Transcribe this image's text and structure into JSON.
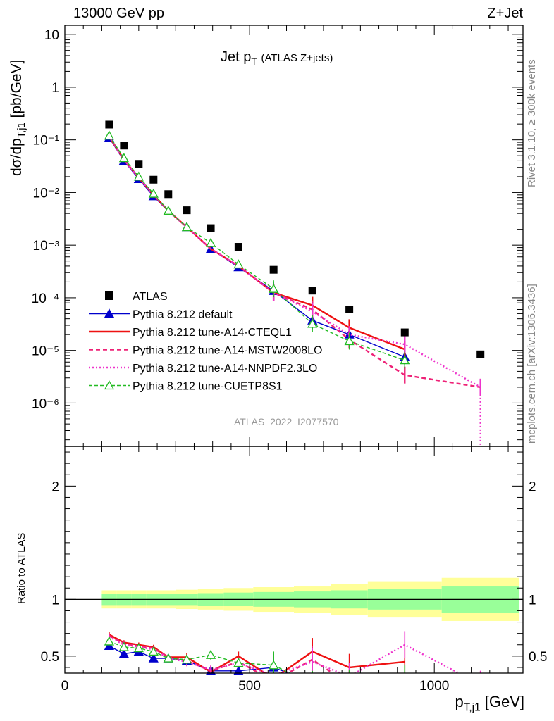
{
  "header": {
    "left": "13000 GeV pp",
    "right": "Z+Jet"
  },
  "side_labels": {
    "rivet": "Rivet 3.1.10, ≥ 300k events",
    "mcplots": "mcplots.cern.ch [arXiv:1306.3436]"
  },
  "plot_title": {
    "main": "Jet p",
    "main_sub": "T",
    "note": "(ATLAS Z+jets)"
  },
  "analysis_tag": "ATLAS_2022_I2077570",
  "axis_labels": {
    "main_y": "dσ/dp",
    "main_y_sub": "T,j1",
    "main_y_unit": " [pb/GeV]",
    "ratio_y": "Ratio to ATLAS",
    "x": "p",
    "x_sub": "T,j1",
    "x_unit": " [GeV]"
  },
  "colors": {
    "atlas": "#000000",
    "default": "#0000cc",
    "cteql1": "#ee1111",
    "mstw": "#ee2277",
    "nnpdf": "#ee33cc",
    "cuetp8s1": "#22bb22",
    "band_inner": "#99ff99",
    "band_outer": "#ffff99"
  },
  "chart_data": {
    "type": "scatter",
    "x_range": [
      0,
      1240
    ],
    "x_ticks": [
      "0",
      "500",
      "1000"
    ],
    "main_y_log": true,
    "main_y_range": [
      1.5e-07,
      15
    ],
    "main_y_ticks": [
      "10",
      "1",
      "10⁻¹",
      "10⁻²",
      "10⁻³",
      "10⁻⁴",
      "10⁻⁵",
      "10⁻⁶"
    ],
    "ratio_y_range": [
      0.35,
      2.35
    ],
    "ratio_y_ticks": [
      "0.5",
      "1",
      "2"
    ],
    "bins": [
      [
        100,
        140
      ],
      [
        140,
        180
      ],
      [
        180,
        220
      ],
      [
        220,
        260
      ],
      [
        260,
        300
      ],
      [
        300,
        360
      ],
      [
        360,
        430
      ],
      [
        430,
        510
      ],
      [
        510,
        620
      ],
      [
        620,
        720
      ],
      [
        720,
        820
      ],
      [
        820,
        1020
      ],
      [
        1020,
        1230
      ]
    ],
    "atlas": {
      "name": "ATLAS",
      "x": [
        120,
        160,
        200,
        240,
        280,
        330,
        395,
        470,
        565,
        670,
        770,
        920,
        1125
      ],
      "y": [
        0.195,
        0.078,
        0.035,
        0.0175,
        0.0093,
        0.0046,
        0.0021,
        0.00093,
        0.00034,
        0.000137,
        6e-05,
        2.2e-05,
        8.4e-06
      ],
      "band_inner": [
        0.05,
        0.05,
        0.05,
        0.05,
        0.05,
        0.05,
        0.055,
        0.06,
        0.065,
        0.07,
        0.08,
        0.09,
        0.12
      ],
      "band_outer": [
        0.08,
        0.08,
        0.08,
        0.08,
        0.08,
        0.085,
        0.09,
        0.1,
        0.11,
        0.12,
        0.135,
        0.16,
        0.19
      ]
    },
    "series": [
      {
        "key": "default",
        "name": "Pythia 8.212 default",
        "x": [
          120,
          160,
          200,
          240,
          280,
          330,
          395,
          470,
          565,
          670,
          770,
          920
        ],
        "y": [
          0.11,
          0.04,
          0.018,
          0.0085,
          0.0044,
          0.0022,
          0.00085,
          0.00038,
          0.000135,
          3.7e-05,
          2e-05,
          7.5e-06
        ],
        "ratio": [
          0.59,
          0.52,
          0.54,
          0.48,
          0.48,
          0.46,
          0.37,
          0.37,
          0.4,
          0.27,
          0.33,
          0.34
        ]
      },
      {
        "key": "cteql1",
        "name": "Pythia 8.212 tune-A14-CTEQL1",
        "x": [
          120,
          160,
          200,
          240,
          280,
          330,
          395,
          470,
          565,
          670,
          770,
          920
        ],
        "y": [
          0.115,
          0.042,
          0.019,
          0.009,
          0.0045,
          0.0022,
          0.00085,
          0.0004,
          0.000125,
          7.2e-05,
          2.7e-05,
          1.05e-05
        ],
        "ratio": [
          0.69,
          0.62,
          0.6,
          0.58,
          0.49,
          0.49,
          0.36,
          0.5,
          0.3,
          0.54,
          0.4,
          0.45
        ]
      },
      {
        "key": "mstw",
        "name": "Pythia 8.212 tune-A14-MSTW2008LO",
        "x": [
          120,
          160,
          200,
          240,
          280,
          330,
          395,
          470,
          565,
          670,
          770,
          920,
          1125
        ],
        "y": [
          0.115,
          0.042,
          0.019,
          0.009,
          0.0045,
          0.0022,
          0.00085,
          0.0004,
          0.000125,
          6e-05,
          1.6e-05,
          3.4e-06,
          2e-06
        ],
        "ratio": [
          0.68,
          0.61,
          0.59,
          0.57,
          0.49,
          0.46,
          0.37,
          0.45,
          0.28,
          0.47,
          0.25,
          0.15,
          0.25
        ]
      },
      {
        "key": "nnpdf",
        "name": "Pythia 8.212 tune-A14-NNPDF2.3LO",
        "x": [
          120,
          160,
          200,
          240,
          280,
          330,
          395,
          470,
          565,
          670,
          770,
          920,
          1125
        ],
        "y": [
          0.115,
          0.042,
          0.019,
          0.009,
          0.0045,
          0.0022,
          0.00085,
          0.0004,
          0.000125,
          5.5e-05,
          2e-05,
          1.3e-05,
          2e-06
        ],
        "ratio": [
          0.67,
          0.6,
          0.58,
          0.56,
          0.48,
          0.45,
          0.38,
          0.44,
          0.33,
          0.45,
          0.32,
          0.6,
          0.25
        ]
      },
      {
        "key": "cuetp8s1",
        "name": "Pythia 8.212 tune-CUETP8S1",
        "x": [
          120,
          160,
          200,
          240,
          280,
          330,
          395,
          470,
          565,
          670,
          770,
          920
        ],
        "y": [
          0.12,
          0.045,
          0.02,
          0.0095,
          0.0045,
          0.0022,
          0.0011,
          0.00043,
          0.000148,
          3.2e-05,
          1.5e-05,
          6.5e-06
        ],
        "ratio": [
          0.63,
          0.58,
          0.57,
          0.54,
          0.48,
          0.47,
          0.51,
          0.44,
          0.42,
          0.25,
          0.26,
          0.3
        ]
      }
    ],
    "legend_position": "lower-left"
  }
}
